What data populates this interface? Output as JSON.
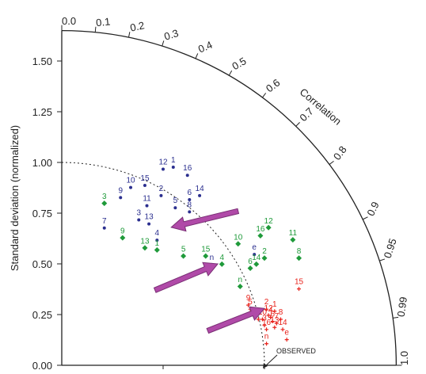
{
  "chart_data": {
    "type": "scatter",
    "subtype": "taylor-diagram",
    "ylabel": "Standard deviation (normalized)",
    "correlation_axis_label": "Correlation",
    "observed_label": "OBSERVED",
    "std_ticks": [
      "0.00",
      "0.25",
      "0.50",
      "0.75",
      "1.00",
      "1.25",
      "1.50"
    ],
    "std_tick_values": [
      0,
      0.25,
      0.5,
      0.75,
      1.0,
      1.25,
      1.5
    ],
    "corr_ticks": [
      "0.0",
      "0.1",
      "0.2",
      "0.3",
      "0.4",
      "0.5",
      "0.6",
      "0.7",
      "0.8",
      "0.9",
      "0.95",
      "0.99",
      "1.0"
    ],
    "corr_tick_values": [
      0,
      0.1,
      0.2,
      0.3,
      0.4,
      0.5,
      0.6,
      0.7,
      0.8,
      0.9,
      0.95,
      0.99,
      1.0
    ],
    "std_max": 1.65,
    "colors": {
      "blue": "#2b2f8f",
      "green": "#1f9a3a",
      "red": "#e8231c",
      "arrow": "#b04aa8"
    },
    "series": [
      {
        "color": "blue",
        "points": [
          {
            "label": "1",
            "x": 0.55,
            "y": 1.0
          },
          {
            "label": "12",
            "x": 0.5,
            "y": 0.99
          },
          {
            "label": "16",
            "x": 0.62,
            "y": 0.96
          },
          {
            "label": "10",
            "x": 0.34,
            "y": 0.9
          },
          {
            "label": "15",
            "x": 0.41,
            "y": 0.91
          },
          {
            "label": "2",
            "x": 0.49,
            "y": 0.86
          },
          {
            "label": "14",
            "x": 0.68,
            "y": 0.86
          },
          {
            "label": "6",
            "x": 0.63,
            "y": 0.84
          },
          {
            "label": "9",
            "x": 0.29,
            "y": 0.85
          },
          {
            "label": "11",
            "x": 0.42,
            "y": 0.81
          },
          {
            "label": "5",
            "x": 0.56,
            "y": 0.8
          },
          {
            "label": "8",
            "x": 0.63,
            "y": 0.78
          },
          {
            "label": "3",
            "x": 0.38,
            "y": 0.74
          },
          {
            "label": "13",
            "x": 0.43,
            "y": 0.72
          },
          {
            "label": "7",
            "x": 0.21,
            "y": 0.7
          },
          {
            "label": "4",
            "x": 0.47,
            "y": 0.64
          },
          {
            "label": "n",
            "x": 0.74,
            "y": 0.52
          },
          {
            "label": "e",
            "x": 0.95,
            "y": 0.57
          }
        ]
      },
      {
        "color": "green",
        "points": [
          {
            "label": "3",
            "x": 0.21,
            "y": 0.82
          },
          {
            "label": "9",
            "x": 0.3,
            "y": 0.65
          },
          {
            "label": "12",
            "x": 1.02,
            "y": 0.7
          },
          {
            "label": "11",
            "x": 1.14,
            "y": 0.64
          },
          {
            "label": "10",
            "x": 0.87,
            "y": 0.62
          },
          {
            "label": "16",
            "x": 0.98,
            "y": 0.66
          },
          {
            "label": "8",
            "x": 1.17,
            "y": 0.55
          },
          {
            "label": "13",
            "x": 0.41,
            "y": 0.6
          },
          {
            "label": "1",
            "x": 0.47,
            "y": 0.59
          },
          {
            "label": "5",
            "x": 0.6,
            "y": 0.56
          },
          {
            "label": "15",
            "x": 0.71,
            "y": 0.56
          },
          {
            "label": "2",
            "x": 1.0,
            "y": 0.55
          },
          {
            "label": "6",
            "x": 0.93,
            "y": 0.5
          },
          {
            "label": "14",
            "x": 0.96,
            "y": 0.52
          },
          {
            "label": "4",
            "x": 0.79,
            "y": 0.52
          },
          {
            "label": "n",
            "x": 0.88,
            "y": 0.41
          }
        ]
      },
      {
        "color": "red",
        "points": [
          {
            "label": "15",
            "x": 1.17,
            "y": 0.4
          },
          {
            "label": "9",
            "x": 0.92,
            "y": 0.32
          },
          {
            "label": "5",
            "x": 0.93,
            "y": 0.3
          },
          {
            "label": "2",
            "x": 1.01,
            "y": 0.3
          },
          {
            "label": "1",
            "x": 1.05,
            "y": 0.29
          },
          {
            "label": "12",
            "x": 1.02,
            "y": 0.27
          },
          {
            "label": "11",
            "x": 0.97,
            "y": 0.25
          },
          {
            "label": "10",
            "x": 0.99,
            "y": 0.25
          },
          {
            "label": "3",
            "x": 1.0,
            "y": 0.22
          },
          {
            "label": "4",
            "x": 1.03,
            "y": 0.26
          },
          {
            "label": "6",
            "x": 1.04,
            "y": 0.24
          },
          {
            "label": "7",
            "x": 1.06,
            "y": 0.23
          },
          {
            "label": "8",
            "x": 1.08,
            "y": 0.25
          },
          {
            "label": "13",
            "x": 1.05,
            "y": 0.21
          },
          {
            "label": "16",
            "x": 1.01,
            "y": 0.2
          },
          {
            "label": "14",
            "x": 1.09,
            "y": 0.2
          },
          {
            "label": "n",
            "x": 1.01,
            "y": 0.13
          },
          {
            "label": "e",
            "x": 1.11,
            "y": 0.15
          }
        ]
      }
    ],
    "arrows": [
      {
        "from": [
          0.87,
          0.76
        ],
        "to": [
          0.54,
          0.68
        ]
      },
      {
        "from": [
          0.46,
          0.37
        ],
        "to": [
          0.77,
          0.5
        ]
      },
      {
        "from": [
          0.72,
          0.17
        ],
        "to": [
          1.0,
          0.28
        ]
      }
    ]
  }
}
